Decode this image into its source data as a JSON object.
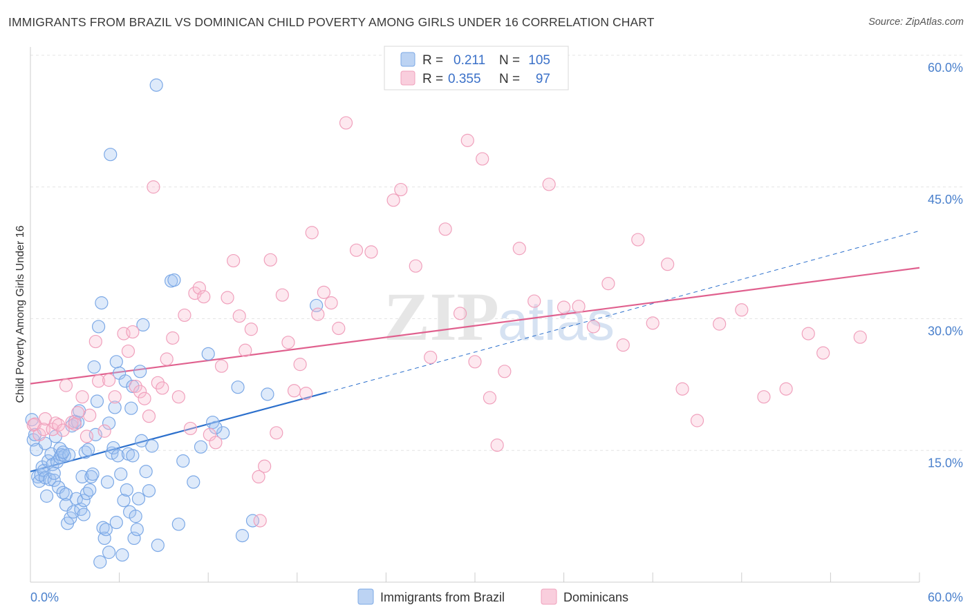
{
  "title": "IMMIGRANTS FROM BRAZIL VS DOMINICAN CHILD POVERTY AMONG GIRLS UNDER 16 CORRELATION CHART",
  "source": "Source: ZipAtlas.com",
  "watermark": "ZIPatlas",
  "legend_top": [
    {
      "r_label": "R =",
      "r_value": "0.211",
      "n_label": "N =",
      "n_value": "105",
      "color": "#7ba8e6"
    },
    {
      "r_label": "R =",
      "r_value": "0.355",
      "n_label": "N =",
      "n_value": "97",
      "color": "#f0a0bc"
    }
  ],
  "legend_bottom": [
    {
      "label": "Immigrants from Brazil",
      "color": "#7ba8e6"
    },
    {
      "label": "Dominicans",
      "color": "#f0a0bc"
    }
  ],
  "chart_data": {
    "type": "scatter",
    "xlabel": "",
    "ylabel": "Child Poverty Among Girls Under 16",
    "xlim": [
      0,
      60
    ],
    "ylim": [
      0,
      60
    ],
    "x_tick_labels": [
      "0.0%",
      "60.0%"
    ],
    "y_ticks": [
      15,
      30,
      45,
      60
    ],
    "y_tick_labels": [
      "15.0%",
      "30.0%",
      "45.0%",
      "60.0%"
    ],
    "grid": true,
    "series": [
      {
        "name": "Immigrants from Brazil",
        "color": "#7ba8e6",
        "line_color": "#2b6fcc",
        "r": 0.211,
        "n": 105,
        "trend": {
          "x0": 0,
          "y0": 12.6,
          "x1": 20,
          "y1": 21.6,
          "dash_x1": 60,
          "dash_y1": 40.0
        },
        "points": [
          [
            0.1,
            18.5
          ],
          [
            0.2,
            16.2
          ],
          [
            0.3,
            16.8
          ],
          [
            0.4,
            15.1
          ],
          [
            0.5,
            12.0
          ],
          [
            0.6,
            11.5
          ],
          [
            0.7,
            12.2
          ],
          [
            0.8,
            13.1
          ],
          [
            0.9,
            12.7
          ],
          [
            1.0,
            11.9
          ],
          [
            1.0,
            15.8
          ],
          [
            1.1,
            9.8
          ],
          [
            1.2,
            13.8
          ],
          [
            1.3,
            11.7
          ],
          [
            1.4,
            14.6
          ],
          [
            1.5,
            13.4
          ],
          [
            1.6,
            11.6
          ],
          [
            1.7,
            16.6
          ],
          [
            1.8,
            13.7
          ],
          [
            1.9,
            10.8
          ],
          [
            2.0,
            15.2
          ],
          [
            2.0,
            14.2
          ],
          [
            2.1,
            14.5
          ],
          [
            2.2,
            10.2
          ],
          [
            2.3,
            14.4
          ],
          [
            2.4,
            10.0
          ],
          [
            2.4,
            8.8
          ],
          [
            2.5,
            6.7
          ],
          [
            2.6,
            14.5
          ],
          [
            2.7,
            7.3
          ],
          [
            2.8,
            17.8
          ],
          [
            2.9,
            8.0
          ],
          [
            3.0,
            18.3
          ],
          [
            3.1,
            9.5
          ],
          [
            3.2,
            18.2
          ],
          [
            3.3,
            19.5
          ],
          [
            3.4,
            8.3
          ],
          [
            3.5,
            12.0
          ],
          [
            3.6,
            9.3
          ],
          [
            3.7,
            14.8
          ],
          [
            3.8,
            10.1
          ],
          [
            3.9,
            15.1
          ],
          [
            4.0,
            10.5
          ],
          [
            4.1,
            12.0
          ],
          [
            4.2,
            12.3
          ],
          [
            4.3,
            24.5
          ],
          [
            4.4,
            16.8
          ],
          [
            4.5,
            20.6
          ],
          [
            4.6,
            29.1
          ],
          [
            4.7,
            2.3
          ],
          [
            4.8,
            31.8
          ],
          [
            4.9,
            6.2
          ],
          [
            5.0,
            5.0
          ],
          [
            5.1,
            6.0
          ],
          [
            5.2,
            11.4
          ],
          [
            5.3,
            3.4
          ],
          [
            5.3,
            18.1
          ],
          [
            5.4,
            48.7
          ],
          [
            5.5,
            14.7
          ],
          [
            5.6,
            15.3
          ],
          [
            5.7,
            19.9
          ],
          [
            5.8,
            6.8
          ],
          [
            5.8,
            25.1
          ],
          [
            5.9,
            14.4
          ],
          [
            6.0,
            23.8
          ],
          [
            6.1,
            12.3
          ],
          [
            6.2,
            3.1
          ],
          [
            6.3,
            9.3
          ],
          [
            6.4,
            22.9
          ],
          [
            6.5,
            10.5
          ],
          [
            6.6,
            14.6
          ],
          [
            6.7,
            8.0
          ],
          [
            6.8,
            19.8
          ],
          [
            6.9,
            22.3
          ],
          [
            7.0,
            5.0
          ],
          [
            7.1,
            7.5
          ],
          [
            7.2,
            6.0
          ],
          [
            7.3,
            9.5
          ],
          [
            7.4,
            24.0
          ],
          [
            7.5,
            16.1
          ],
          [
            7.6,
            29.3
          ],
          [
            7.8,
            12.6
          ],
          [
            8.0,
            10.4
          ],
          [
            8.2,
            15.5
          ],
          [
            8.5,
            56.6
          ],
          [
            8.6,
            4.2
          ],
          [
            9.5,
            34.3
          ],
          [
            9.7,
            34.4
          ],
          [
            10.0,
            6.6
          ],
          [
            10.3,
            13.8
          ],
          [
            11.0,
            11.4
          ],
          [
            11.5,
            15.4
          ],
          [
            12.0,
            26.0
          ],
          [
            12.3,
            18.2
          ],
          [
            13.0,
            17.0
          ],
          [
            14.0,
            22.2
          ],
          [
            14.3,
            5.3
          ],
          [
            15.0,
            7.0
          ],
          [
            16.0,
            21.4
          ],
          [
            19.3,
            31.5
          ],
          [
            2.2,
            14.8
          ],
          [
            1.6,
            12.4
          ],
          [
            3.6,
            7.7
          ],
          [
            6.9,
            14.4
          ],
          [
            12.5,
            17.6
          ]
        ]
      },
      {
        "name": "Dominicans",
        "color": "#f0a0bc",
        "line_color": "#e0608e",
        "r": 0.355,
        "n": 97,
        "trend": {
          "x0": 0,
          "y0": 22.6,
          "x1": 60,
          "y1": 35.8
        },
        "points": [
          [
            0.2,
            17.9
          ],
          [
            0.3,
            18.0
          ],
          [
            0.6,
            16.8
          ],
          [
            0.9,
            17.4
          ],
          [
            1.0,
            18.6
          ],
          [
            1.5,
            17.4
          ],
          [
            1.7,
            18.1
          ],
          [
            1.9,
            17.9
          ],
          [
            2.2,
            17.3
          ],
          [
            2.4,
            22.4
          ],
          [
            2.8,
            18.2
          ],
          [
            3.0,
            18.0
          ],
          [
            3.2,
            19.3
          ],
          [
            3.5,
            21.1
          ],
          [
            3.8,
            16.6
          ],
          [
            4.0,
            19.0
          ],
          [
            4.4,
            27.4
          ],
          [
            4.6,
            22.9
          ],
          [
            5.0,
            17.2
          ],
          [
            5.3,
            23.0
          ],
          [
            5.7,
            21.1
          ],
          [
            6.3,
            28.3
          ],
          [
            6.6,
            26.3
          ],
          [
            6.9,
            28.5
          ],
          [
            7.1,
            22.3
          ],
          [
            7.4,
            21.7
          ],
          [
            7.7,
            20.9
          ],
          [
            8.0,
            18.9
          ],
          [
            8.3,
            45.0
          ],
          [
            8.6,
            22.7
          ],
          [
            8.9,
            22.1
          ],
          [
            9.2,
            25.4
          ],
          [
            9.6,
            27.8
          ],
          [
            10.0,
            21.1
          ],
          [
            10.4,
            30.4
          ],
          [
            10.8,
            17.5
          ],
          [
            11.1,
            32.9
          ],
          [
            11.4,
            33.5
          ],
          [
            11.7,
            32.5
          ],
          [
            12.1,
            16.8
          ],
          [
            12.5,
            15.9
          ],
          [
            12.9,
            24.6
          ],
          [
            13.3,
            32.4
          ],
          [
            13.7,
            36.6
          ],
          [
            14.1,
            30.3
          ],
          [
            14.5,
            26.4
          ],
          [
            14.9,
            28.8
          ],
          [
            15.4,
            12.0
          ],
          [
            15.8,
            13.2
          ],
          [
            16.2,
            36.7
          ],
          [
            16.6,
            17.0
          ],
          [
            17.0,
            32.7
          ],
          [
            17.4,
            27.3
          ],
          [
            17.8,
            21.8
          ],
          [
            18.2,
            24.8
          ],
          [
            18.6,
            21.5
          ],
          [
            19.0,
            39.8
          ],
          [
            19.4,
            30.5
          ],
          [
            19.8,
            33.0
          ],
          [
            20.3,
            31.8
          ],
          [
            20.8,
            28.9
          ],
          [
            21.3,
            52.3
          ],
          [
            22.0,
            37.8
          ],
          [
            23.0,
            37.6
          ],
          [
            24.5,
            43.5
          ],
          [
            25.0,
            44.7
          ],
          [
            26.0,
            36.0
          ],
          [
            27.0,
            25.6
          ],
          [
            28.0,
            40.2
          ],
          [
            29.0,
            30.6
          ],
          [
            29.5,
            50.3
          ],
          [
            30.0,
            25.1
          ],
          [
            30.5,
            48.2
          ],
          [
            31.0,
            21.0
          ],
          [
            31.5,
            15.6
          ],
          [
            32.0,
            24.0
          ],
          [
            33.0,
            38.0
          ],
          [
            34.0,
            32.0
          ],
          [
            35.0,
            45.3
          ],
          [
            36.0,
            31.3
          ],
          [
            37.0,
            31.4
          ],
          [
            38.0,
            29.1
          ],
          [
            39.0,
            34.0
          ],
          [
            40.0,
            27.0
          ],
          [
            41.0,
            39.0
          ],
          [
            42.0,
            29.5
          ],
          [
            43.0,
            36.2
          ],
          [
            44.0,
            22.0
          ],
          [
            45.0,
            18.4
          ],
          [
            46.5,
            29.4
          ],
          [
            48.0,
            31.0
          ],
          [
            49.5,
            21.1
          ],
          [
            51.0,
            22.0
          ],
          [
            52.5,
            28.3
          ],
          [
            53.5,
            26.1
          ],
          [
            56.0,
            27.9
          ],
          [
            15.5,
            7.0
          ]
        ]
      }
    ]
  }
}
